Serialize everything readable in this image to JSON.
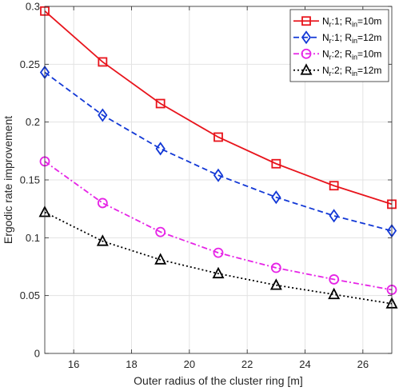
{
  "chart_data": {
    "type": "line",
    "title": "",
    "xlabel": "Outer radius of the cluster ring [m]",
    "ylabel": "Ergodic rate improvement",
    "xlim": [
      15,
      27
    ],
    "ylim": [
      0,
      0.3
    ],
    "xticks": [
      16,
      18,
      20,
      22,
      24,
      26
    ],
    "xtick_labels": [
      "16",
      "18",
      "20",
      "22",
      "24",
      "26"
    ],
    "yticks": [
      0,
      0.05,
      0.1,
      0.15,
      0.2,
      0.25,
      0.3
    ],
    "ytick_labels": [
      "0",
      "0.05",
      "0.1",
      "0.15",
      "0.2",
      "0.25",
      "0.3"
    ],
    "grid": true,
    "legend_position": "top-right",
    "x": [
      15,
      17,
      19,
      21,
      23,
      25,
      27
    ],
    "series": [
      {
        "legend_parts": [
          {
            "text": "N",
            "sub": false
          },
          {
            "text": "r",
            "sub": true
          },
          {
            "text": ":1; R",
            "sub": false
          },
          {
            "text": "in",
            "sub": true
          },
          {
            "text": "=10m",
            "sub": false
          }
        ],
        "values": [
          0.296,
          0.252,
          0.216,
          0.187,
          0.164,
          0.145,
          0.129
        ],
        "color": "#e8141c",
        "dash": "",
        "marker": "square"
      },
      {
        "legend_parts": [
          {
            "text": "N",
            "sub": false
          },
          {
            "text": "r",
            "sub": true
          },
          {
            "text": ":1; R",
            "sub": false
          },
          {
            "text": "in",
            "sub": true
          },
          {
            "text": "=12m",
            "sub": false
          }
        ],
        "values": [
          0.243,
          0.206,
          0.177,
          0.154,
          0.135,
          0.119,
          0.106
        ],
        "color": "#1238d6",
        "dash": "7,4",
        "marker": "diamond"
      },
      {
        "legend_parts": [
          {
            "text": "N",
            "sub": false
          },
          {
            "text": "r",
            "sub": true
          },
          {
            "text": ":2; R",
            "sub": false
          },
          {
            "text": "in",
            "sub": true
          },
          {
            "text": "=10m",
            "sub": false
          }
        ],
        "values": [
          0.166,
          0.13,
          0.105,
          0.087,
          0.074,
          0.064,
          0.055
        ],
        "color": "#e624e6",
        "dash": "7,3,2,3",
        "marker": "circle"
      },
      {
        "legend_parts": [
          {
            "text": "N",
            "sub": false
          },
          {
            "text": "r",
            "sub": true
          },
          {
            "text": ":2; R",
            "sub": false
          },
          {
            "text": "in",
            "sub": true
          },
          {
            "text": "=12m",
            "sub": false
          }
        ],
        "values": [
          0.122,
          0.097,
          0.081,
          0.069,
          0.059,
          0.051,
          0.043
        ],
        "color": "#000000",
        "dash": "2,3",
        "marker": "triangle"
      }
    ]
  }
}
